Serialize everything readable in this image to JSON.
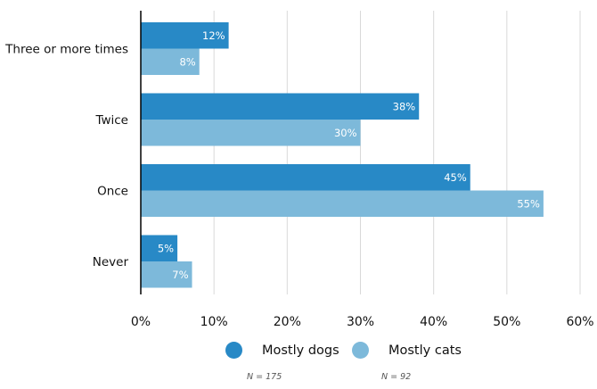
{
  "chart_data": {
    "type": "bar",
    "orientation": "horizontal",
    "title": "",
    "xlabel": "",
    "ylabel": "",
    "categories": [
      "Three or more times",
      "Twice",
      "Once",
      "Never"
    ],
    "series": [
      {
        "name": "Mostly dogs",
        "color": "#2889c6",
        "values": [
          12,
          38,
          45,
          5
        ],
        "labels": [
          "12%",
          "38%",
          "45%",
          "5%"
        ],
        "n_label": "N = 175"
      },
      {
        "name": "Mostly cats",
        "color": "#7db9da",
        "values": [
          8,
          30,
          55,
          7
        ],
        "labels": [
          "8%",
          "30%",
          "55%",
          "7%"
        ],
        "n_label": "N = 92"
      }
    ],
    "xlim": [
      0,
      60
    ],
    "xticks": [
      0,
      10,
      20,
      30,
      40,
      50,
      60
    ],
    "xtick_labels": [
      "0%",
      "10%",
      "20%",
      "30%",
      "40%",
      "50%",
      "60%"
    ],
    "grid": true,
    "legend_position": "bottom",
    "gridline_color": "#d9d9d9"
  }
}
